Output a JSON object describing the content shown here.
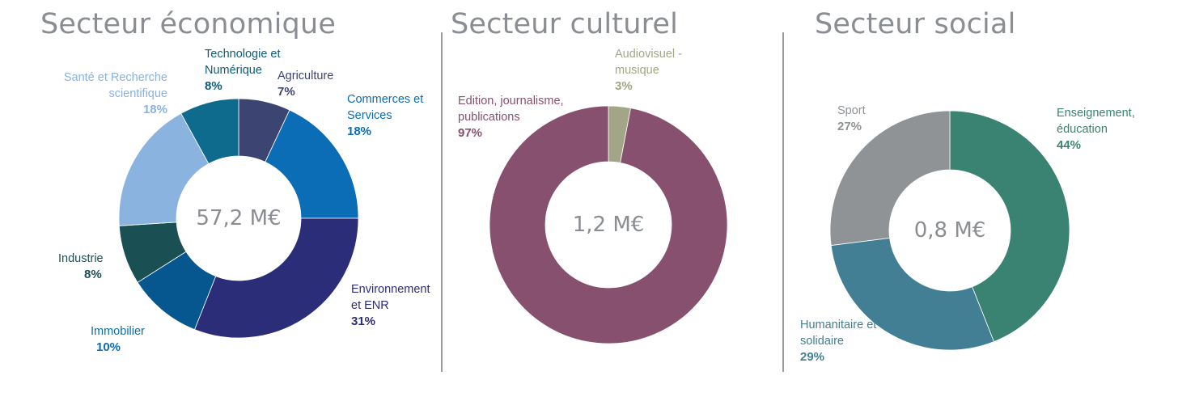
{
  "chart_data": [
    {
      "type": "pie",
      "title": "Secteur économique",
      "total_label": "57,2 M€",
      "slices": [
        {
          "name": "Agriculture",
          "value": 7,
          "label": "7%",
          "color": "#3c4472",
          "label_color": "#3c4472"
        },
        {
          "name": "Commerces et Services",
          "value": 18,
          "label": "18%",
          "color": "#0a6db5",
          "label_color": "#0a6db5"
        },
        {
          "name": "Environnement et ENR",
          "value": 31,
          "label": "31%",
          "color": "#2b2d78",
          "label_color": "#2b2d78"
        },
        {
          "name": "Immobilier",
          "value": 10,
          "label": "10%",
          "color": "#06578f",
          "label_color": "#0a6db5"
        },
        {
          "name": "Industrie",
          "value": 8,
          "label": "8%",
          "color": "#1a5054",
          "label_color": "#1a5054"
        },
        {
          "name": "Santé et Recherche scientifique",
          "value": 18,
          "label": "18%",
          "color": "#8ab3e0",
          "label_color": "#8ab3e0"
        },
        {
          "name": "Technologie et Numérique",
          "value": 8,
          "label": "8%",
          "color": "#0f6b8e",
          "label_color": "#0e5c7a"
        }
      ]
    },
    {
      "type": "pie",
      "title": "Secteur culturel",
      "total_label": "1,2 M€",
      "slices": [
        {
          "name": "Audiovisuel - musique",
          "value": 3,
          "label": "3%",
          "color": "#a3a686",
          "label_color": "#a3a686"
        },
        {
          "name": "Edition, journalisme, publications",
          "value": 97,
          "label": "97%",
          "color": "#87506f",
          "label_color": "#87506f"
        }
      ]
    },
    {
      "type": "pie",
      "title": "Secteur social",
      "total_label": "0,8 M€",
      "slices": [
        {
          "name": "Enseignement, éducation",
          "value": 44,
          "label": "44%",
          "color": "#3a8372",
          "label_color": "#3a8372"
        },
        {
          "name": "Humanitaire et solidaire",
          "value": 29,
          "label": "29%",
          "color": "#437f94",
          "label_color": "#437f94"
        },
        {
          "name": "Sport",
          "value": 27,
          "label": "27%",
          "color": "#8f9396",
          "label_color": "#8f9396"
        }
      ]
    }
  ]
}
